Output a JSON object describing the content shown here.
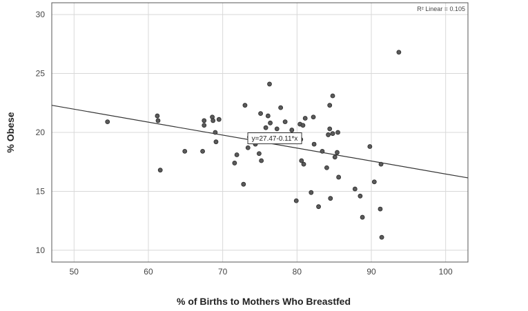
{
  "chart_data": {
    "type": "scatter",
    "title": "",
    "xlabel": "% of Births to Mothers Who Breastfed",
    "ylabel": "% Obese",
    "xlim": [
      47,
      103
    ],
    "ylim": [
      9,
      31
    ],
    "xticks": [
      50,
      60,
      70,
      80,
      90,
      100
    ],
    "yticks": [
      10,
      15,
      20,
      25,
      30
    ],
    "grid": true,
    "r2_label": "R² Linear = 0.105",
    "fit": {
      "intercept": 27.47,
      "slope": -0.11,
      "equation_label": "y=27.47-0.11*x",
      "label_x": 77,
      "label_y": 19.5
    },
    "points": [
      [
        54.5,
        20.9
      ],
      [
        61.2,
        21.4
      ],
      [
        61.3,
        21.0
      ],
      [
        61.6,
        16.8
      ],
      [
        64.9,
        18.4
      ],
      [
        67.3,
        18.4
      ],
      [
        67.5,
        21.0
      ],
      [
        67.5,
        20.6
      ],
      [
        68.6,
        21.3
      ],
      [
        68.7,
        21.0
      ],
      [
        69.0,
        20.0
      ],
      [
        69.1,
        19.2
      ],
      [
        69.5,
        21.1
      ],
      [
        71.6,
        17.4
      ],
      [
        71.9,
        18.1
      ],
      [
        72.8,
        15.6
      ],
      [
        73.0,
        22.3
      ],
      [
        73.4,
        18.7
      ],
      [
        73.6,
        19.6
      ],
      [
        74.4,
        19.0
      ],
      [
        74.9,
        18.2
      ],
      [
        75.1,
        21.6
      ],
      [
        75.2,
        17.6
      ],
      [
        75.8,
        20.4
      ],
      [
        76.1,
        21.4
      ],
      [
        76.3,
        24.1
      ],
      [
        76.4,
        20.8
      ],
      [
        77.3,
        20.3
      ],
      [
        77.8,
        22.1
      ],
      [
        78.4,
        20.9
      ],
      [
        79.3,
        20.2
      ],
      [
        79.9,
        14.2
      ],
      [
        80.4,
        20.7
      ],
      [
        80.5,
        19.4
      ],
      [
        80.6,
        17.6
      ],
      [
        80.8,
        20.6
      ],
      [
        80.9,
        17.3
      ],
      [
        81.1,
        21.2
      ],
      [
        81.9,
        14.9
      ],
      [
        82.2,
        21.3
      ],
      [
        82.3,
        19.0
      ],
      [
        82.9,
        13.7
      ],
      [
        83.4,
        18.4
      ],
      [
        84.0,
        17.0
      ],
      [
        84.2,
        19.8
      ],
      [
        84.4,
        20.3
      ],
      [
        84.4,
        22.3
      ],
      [
        84.5,
        14.4
      ],
      [
        84.8,
        19.9
      ],
      [
        84.8,
        23.1
      ],
      [
        85.1,
        17.9
      ],
      [
        85.4,
        18.3
      ],
      [
        85.5,
        20.0
      ],
      [
        85.6,
        16.2
      ],
      [
        87.8,
        15.2
      ],
      [
        88.5,
        14.6
      ],
      [
        88.8,
        12.8
      ],
      [
        89.8,
        18.8
      ],
      [
        90.4,
        15.8
      ],
      [
        91.2,
        13.5
      ],
      [
        91.3,
        17.3
      ],
      [
        91.4,
        11.1
      ],
      [
        93.7,
        26.8
      ]
    ]
  }
}
